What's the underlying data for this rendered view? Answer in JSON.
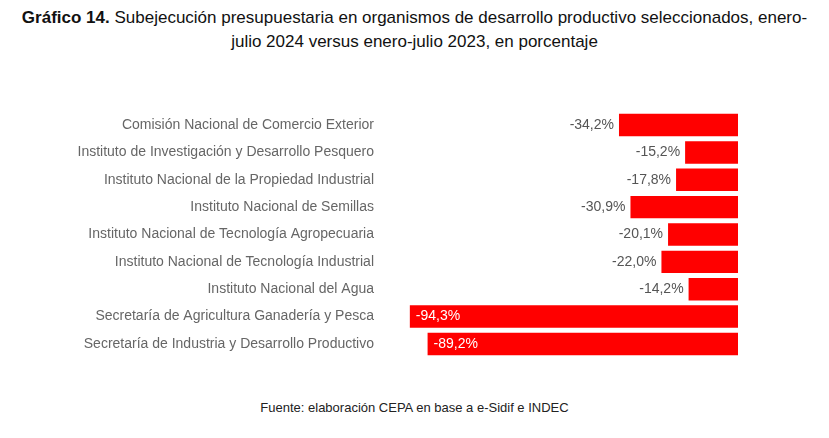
{
  "chart_data": {
    "type": "bar",
    "title": "Gráfico 14. Subejecución presupuestaria en organismos de desarrollo productivo seleccionados, enero-julio 2024 versus enero-julio 2023, en porcentaje",
    "source": "Fuente: elaboración CEPA en base a e-Sidif e INDEC",
    "orientation": "horizontal",
    "categories": [
      "Comisión Nacional de Comercio Exterior",
      "Instituto de Investigación y Desarrollo Pesquero",
      "Instituto Nacional de la Propiedad Industrial",
      "Instituto Nacional de Semillas",
      "Instituto Nacional de Tecnología Agropecuaria",
      "Instituto Nacional de Tecnología Industrial",
      "Instituto Nacional del Agua",
      "Secretaría de Agricultura Ganadería y Pesca",
      "Secretaría de Industria y Desarrollo Productivo"
    ],
    "values": [
      -34.2,
      -15.2,
      -17.8,
      -30.9,
      -20.1,
      -22.0,
      -14.2,
      -94.3,
      -89.2
    ],
    "value_labels": [
      "-34,2%",
      "-15,2%",
      "-17,8%",
      "-30,9%",
      "-20,1%",
      "-22,0%",
      "-14,2%",
      "-94,3%",
      "-89,2%"
    ],
    "color": "#ff0000",
    "xlim": [
      -100,
      0
    ],
    "grid": false,
    "tick_labels": "y",
    "data_labels": true
  }
}
